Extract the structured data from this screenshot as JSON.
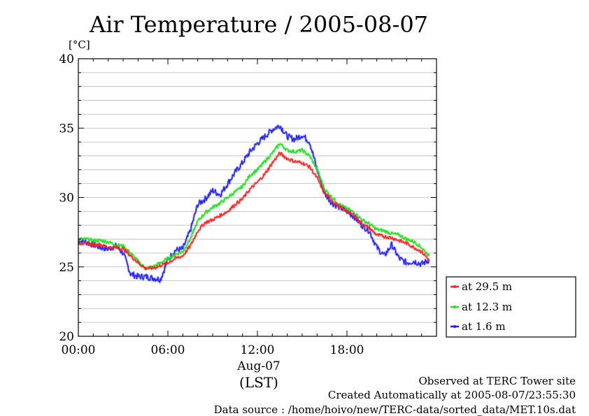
{
  "chart_data": {
    "type": "line",
    "title": "Air Temperature / 2005-08-07",
    "ylabel": "[°C]",
    "xlabel_date": "Aug-07",
    "xlabel_tz": "(LST)",
    "ylim": [
      20,
      40
    ],
    "xlim": [
      0,
      24
    ],
    "yticks": [
      "20",
      "25",
      "30",
      "35",
      "40"
    ],
    "xticks": [
      "00:00",
      "06:00",
      "12:00",
      "18:00"
    ],
    "grid": true,
    "legend_placement": "bottom-right",
    "series": [
      {
        "name": "at 29.5 m",
        "color": "#ff2020",
        "x": [
          0,
          0.5,
          1,
          1.5,
          2,
          2.5,
          3,
          3.5,
          4,
          4.5,
          5,
          5.5,
          6,
          6.5,
          7,
          7.5,
          8,
          8.5,
          9,
          9.5,
          10,
          10.5,
          11,
          11.5,
          12,
          12.5,
          13,
          13.5,
          14,
          14.5,
          15,
          15.5,
          16,
          16.5,
          17,
          17.5,
          18,
          18.5,
          19,
          19.5,
          20,
          20.5,
          21,
          21.5,
          22,
          22.5,
          23,
          23.5
        ],
        "values": [
          26.7,
          26.7,
          26.6,
          26.6,
          26.4,
          26.4,
          26.3,
          25.8,
          25.3,
          24.9,
          24.9,
          25.1,
          25.3,
          25.6,
          25.8,
          26.5,
          27.6,
          28.2,
          28.4,
          28.7,
          29.0,
          29.5,
          29.9,
          30.6,
          31.1,
          31.7,
          32.5,
          33.2,
          32.8,
          32.6,
          32.5,
          32.2,
          31.4,
          30.3,
          29.8,
          29.3,
          29.0,
          28.7,
          28.1,
          27.8,
          27.3,
          27.2,
          27.1,
          26.9,
          26.7,
          26.4,
          26.1,
          25.5
        ]
      },
      {
        "name": "at 12.3 m",
        "color": "#20e020",
        "x": [
          0,
          0.5,
          1,
          1.5,
          2,
          2.5,
          3,
          3.5,
          4,
          4.5,
          5,
          5.5,
          6,
          6.5,
          7,
          7.5,
          8,
          8.5,
          9,
          9.5,
          10,
          10.5,
          11,
          11.5,
          12,
          12.5,
          13,
          13.5,
          14,
          14.5,
          15,
          15.5,
          16,
          16.5,
          17,
          17.5,
          18,
          18.5,
          19,
          19.5,
          20,
          20.5,
          21,
          21.5,
          22,
          22.5,
          23,
          23.5
        ],
        "values": [
          27.0,
          27.0,
          26.9,
          26.9,
          26.8,
          26.6,
          26.5,
          26.0,
          25.4,
          24.9,
          25.0,
          25.3,
          25.6,
          25.9,
          26.1,
          27.0,
          28.3,
          28.9,
          29.3,
          29.6,
          30.0,
          30.4,
          30.8,
          31.6,
          32.0,
          32.6,
          33.2,
          33.9,
          33.4,
          33.3,
          33.4,
          33.0,
          32.0,
          30.6,
          30.0,
          29.5,
          29.2,
          28.9,
          28.4,
          28.1,
          27.7,
          27.6,
          27.4,
          27.3,
          27.0,
          26.8,
          26.4,
          25.8
        ]
      },
      {
        "name": "at 1.6 m",
        "color": "#2020ff",
        "x": [
          0,
          0.5,
          1,
          1.5,
          2,
          2.5,
          3,
          3.5,
          4,
          4.5,
          5,
          5.5,
          6,
          6.5,
          7,
          7.5,
          8,
          8.5,
          9,
          9.5,
          10,
          10.5,
          11,
          11.5,
          12,
          12.5,
          13,
          13.5,
          14,
          14.5,
          15,
          15.5,
          16,
          16.5,
          17,
          17.5,
          18,
          18.5,
          19,
          19.5,
          20,
          20.5,
          21,
          21.5,
          22,
          22.5,
          23,
          23.5
        ],
        "values": [
          26.9,
          26.8,
          26.6,
          26.4,
          26.3,
          26.5,
          26.0,
          24.5,
          24.3,
          24.3,
          24.2,
          24.1,
          25.5,
          26.2,
          26.3,
          27.6,
          29.5,
          29.9,
          30.5,
          30.2,
          31.0,
          31.8,
          32.5,
          33.3,
          33.9,
          34.4,
          34.9,
          35.2,
          34.4,
          34.2,
          34.5,
          34.0,
          32.0,
          30.3,
          29.6,
          29.3,
          29.0,
          28.6,
          28.0,
          27.6,
          26.4,
          25.8,
          26.6,
          25.6,
          25.3,
          25.4,
          25.2,
          25.5
        ]
      }
    ]
  },
  "footer": {
    "line1": "Observed at TERC Tower site",
    "line2": "Created Automatically at 2005-08-07/23:55:30",
    "line3": "Data source : /home/hoivo/new/TERC-data/sorted_data/MET.10s.dat"
  }
}
